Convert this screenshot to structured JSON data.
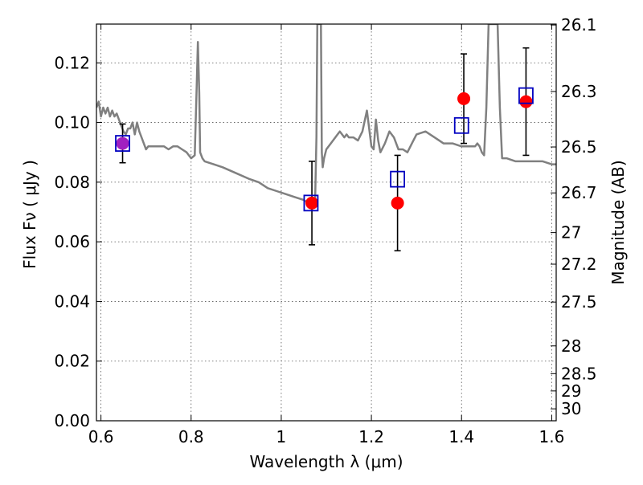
{
  "chart_data": {
    "type": "scatter",
    "xlabel": "Wavelength  λ (μm)",
    "ylabel": "Flux  Fν  ( μJy )",
    "y2label": "Magnitude (AB)",
    "xlim": [
      0.59,
      1.61
    ],
    "ylim": [
      0.0,
      0.133
    ],
    "grid": true,
    "x_ticks": [
      0.6,
      0.8,
      1.0,
      1.2,
      1.4,
      1.6
    ],
    "x_tick_labels": [
      "0.6",
      "0.8",
      "1",
      "1.2",
      "1.4",
      "1.6"
    ],
    "y_ticks": [
      0.0,
      0.02,
      0.04,
      0.06,
      0.08,
      0.1,
      0.12
    ],
    "y_tick_labels": [
      "0.00",
      "0.02",
      "0.04",
      "0.06",
      "0.08",
      "0.10",
      "0.12"
    ],
    "y2_tick_labels": [
      "26.1",
      "26.3",
      "26.5",
      "26.7",
      "27",
      "27.2",
      "27.5",
      "28",
      "28.5",
      "29",
      "30"
    ],
    "y2_tick_flux": [
      0.1327,
      0.1104,
      0.0918,
      0.0764,
      0.0631,
      0.0525,
      0.0398,
      0.0251,
      0.0158,
      0.01,
      0.004
    ],
    "series": [
      {
        "kind": "line",
        "color": "#808080",
        "x": [
          0.59,
          0.595,
          0.6,
          0.605,
          0.61,
          0.615,
          0.62,
          0.625,
          0.63,
          0.635,
          0.64,
          0.645,
          0.65,
          0.655,
          0.66,
          0.665,
          0.67,
          0.675,
          0.68,
          0.685,
          0.69,
          0.695,
          0.7,
          0.705,
          0.71,
          0.72,
          0.73,
          0.74,
          0.75,
          0.76,
          0.77,
          0.78,
          0.79,
          0.8,
          0.808,
          0.812,
          0.815,
          0.818,
          0.82,
          0.825,
          0.83,
          0.85,
          0.87,
          0.9,
          0.93,
          0.95,
          0.97,
          0.99,
          1.01,
          1.03,
          1.05,
          1.06,
          1.07,
          1.075,
          1.078,
          1.08,
          1.082,
          1.085,
          1.088,
          1.09,
          1.092,
          1.095,
          1.1,
          1.11,
          1.12,
          1.125,
          1.13,
          1.135,
          1.14,
          1.145,
          1.15,
          1.16,
          1.17,
          1.18,
          1.19,
          1.2,
          1.205,
          1.21,
          1.215,
          1.22,
          1.23,
          1.24,
          1.25,
          1.26,
          1.27,
          1.28,
          1.29,
          1.3,
          1.32,
          1.34,
          1.36,
          1.38,
          1.4,
          1.42,
          1.43,
          1.435,
          1.44,
          1.445,
          1.45,
          1.455,
          1.46,
          1.47,
          1.48,
          1.485,
          1.49,
          1.5,
          1.52,
          1.54,
          1.56,
          1.58,
          1.6,
          1.61
        ],
        "y": [
          0.105,
          0.107,
          0.102,
          0.105,
          0.103,
          0.105,
          0.102,
          0.104,
          0.102,
          0.103,
          0.101,
          0.099,
          0.097,
          0.096,
          0.098,
          0.098,
          0.1,
          0.096,
          0.1,
          0.097,
          0.095,
          0.093,
          0.091,
          0.092,
          0.092,
          0.092,
          0.092,
          0.092,
          0.091,
          0.092,
          0.092,
          0.091,
          0.09,
          0.088,
          0.089,
          0.11,
          0.127,
          0.11,
          0.09,
          0.088,
          0.087,
          0.086,
          0.085,
          0.083,
          0.081,
          0.08,
          0.078,
          0.077,
          0.076,
          0.075,
          0.074,
          0.073,
          0.073,
          0.073,
          0.095,
          0.133,
          0.133,
          0.133,
          0.133,
          0.09,
          0.085,
          0.088,
          0.091,
          0.093,
          0.095,
          0.096,
          0.097,
          0.096,
          0.095,
          0.096,
          0.095,
          0.095,
          0.094,
          0.097,
          0.104,
          0.092,
          0.091,
          0.101,
          0.094,
          0.09,
          0.093,
          0.097,
          0.095,
          0.091,
          0.091,
          0.09,
          0.093,
          0.096,
          0.097,
          0.095,
          0.093,
          0.093,
          0.092,
          0.092,
          0.092,
          0.093,
          0.092,
          0.09,
          0.089,
          0.105,
          0.133,
          0.133,
          0.133,
          0.105,
          0.088,
          0.088,
          0.087,
          0.087,
          0.087,
          0.087,
          0.086,
          0.086
        ]
      },
      {
        "kind": "points",
        "marker": "circle",
        "color": "#ff0000",
        "points": [
          {
            "x": 1.068,
            "y": 0.073,
            "err": 0.014
          },
          {
            "x": 1.258,
            "y": 0.073,
            "err": 0.016
          },
          {
            "x": 1.405,
            "y": 0.108,
            "err": 0.015
          },
          {
            "x": 1.543,
            "y": 0.107,
            "err": 0.018
          }
        ]
      },
      {
        "kind": "points",
        "marker": "circle",
        "color": "#a020c0",
        "points": [
          {
            "x": 0.648,
            "y": 0.093,
            "err": 0.0065
          }
        ]
      },
      {
        "kind": "points",
        "marker": "square-open",
        "color": "#0000c0",
        "points": [
          {
            "x": 0.648,
            "y": 0.093
          },
          {
            "x": 1.066,
            "y": 0.073
          },
          {
            "x": 1.258,
            "y": 0.081
          },
          {
            "x": 1.4,
            "y": 0.099
          },
          {
            "x": 1.543,
            "y": 0.109
          }
        ]
      }
    ]
  }
}
